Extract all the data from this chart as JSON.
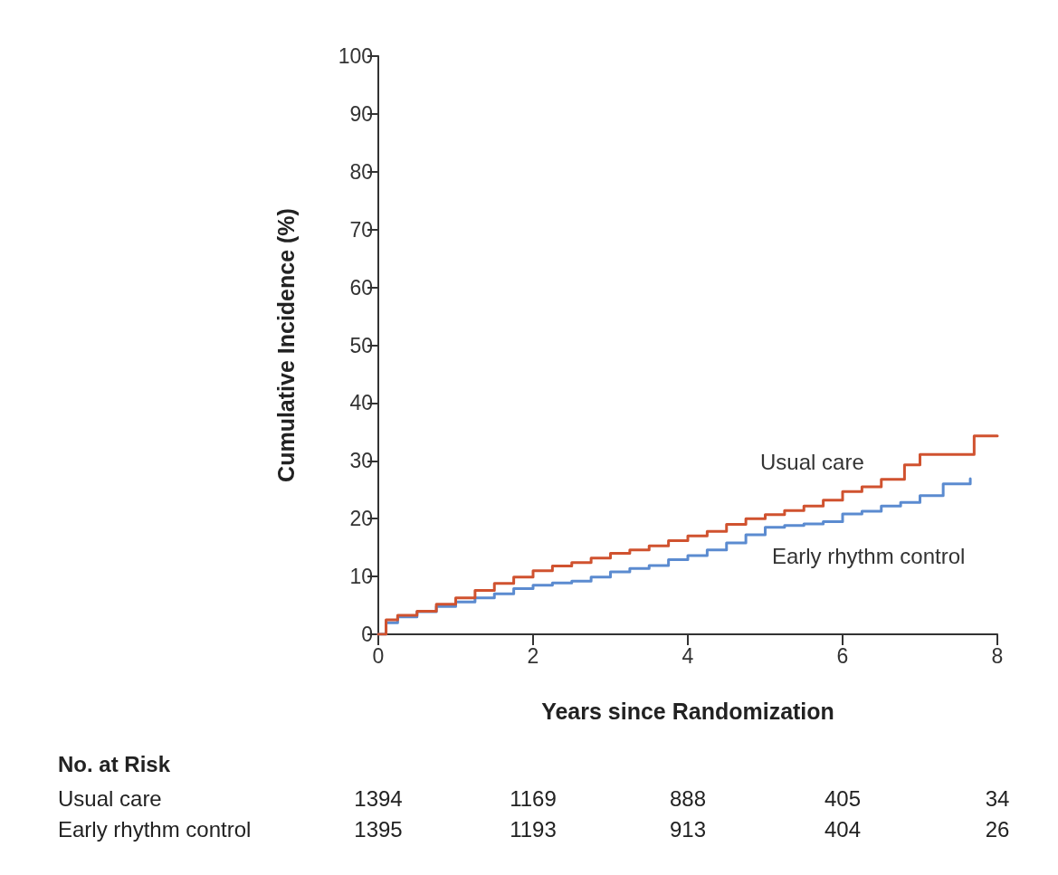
{
  "chart_data": {
    "type": "step",
    "xlabel": "Years since Randomization",
    "ylabel": "Cumulative Incidence (%)",
    "xlim": [
      0,
      8
    ],
    "xticks": [
      0,
      2,
      4,
      6,
      8
    ],
    "ylim": [
      0,
      100
    ],
    "yticks": [
      0,
      10,
      20,
      30,
      40,
      50,
      60,
      70,
      80,
      90,
      100
    ],
    "grid": false,
    "legend": false,
    "marker": "none",
    "line_style": "solid",
    "series": [
      {
        "name": "Usual care",
        "color": "#d0522f",
        "x": [
          0,
          0.1,
          0.25,
          0.5,
          0.75,
          1,
          1.25,
          1.5,
          1.75,
          2,
          2.25,
          2.5,
          2.75,
          3,
          3.25,
          3.5,
          3.75,
          4,
          4.25,
          4.5,
          4.75,
          5,
          5.25,
          5.5,
          5.75,
          6,
          6.25,
          6.5,
          6.8,
          7,
          7.7,
          8
        ],
        "values": [
          0,
          2.5,
          3.3,
          4,
          5.2,
          6.3,
          7.6,
          8.8,
          9.9,
          11,
          11.8,
          12.4,
          13.2,
          14,
          14.6,
          15.3,
          16.2,
          17,
          17.8,
          19,
          20,
          20.7,
          21.4,
          22.2,
          23.2,
          24.7,
          25.5,
          26.8,
          29.3,
          31.1,
          34.3,
          34.3
        ]
      },
      {
        "name": "Early rhythm control",
        "color": "#5b8bd0",
        "x": [
          0,
          0.1,
          0.25,
          0.5,
          0.75,
          1,
          1.25,
          1.5,
          1.75,
          2,
          2.25,
          2.5,
          2.75,
          3,
          3.25,
          3.5,
          3.75,
          4,
          4.25,
          4.5,
          4.75,
          5,
          5.25,
          5.5,
          5.75,
          6,
          6.25,
          6.5,
          6.75,
          7,
          7.3,
          7.65
        ],
        "values": [
          0,
          2,
          3,
          3.9,
          4.8,
          5.6,
          6.3,
          7,
          7.9,
          8.5,
          8.9,
          9.2,
          9.9,
          10.8,
          11.4,
          11.9,
          12.9,
          13.6,
          14.6,
          15.8,
          17.2,
          18.5,
          18.8,
          19.1,
          19.5,
          20.8,
          21.3,
          22.2,
          22.8,
          24,
          26,
          26.9
        ]
      }
    ],
    "annotations": [
      "No. at Risk",
      "Usual care",
      "1394",
      "1169",
      "888",
      "405",
      "34",
      "Early rhythm control",
      "1395",
      "1193",
      "913",
      "404",
      "26"
    ]
  }
}
